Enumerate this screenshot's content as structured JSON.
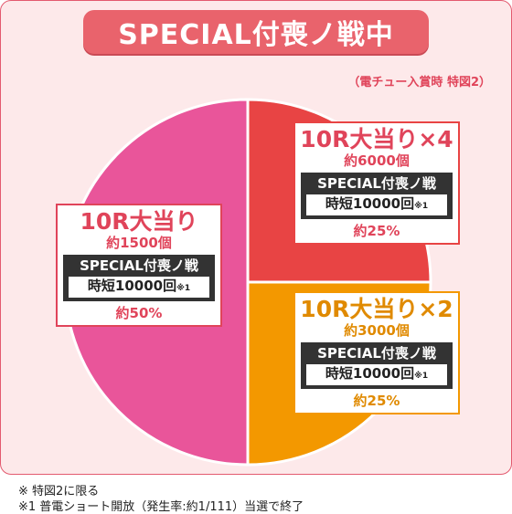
{
  "title": "SPECIAL付喪ノ戦中",
  "caption": "（電チュー入賞時 特図2）",
  "chart_data": {
    "type": "pie",
    "categories": [
      "10R大当り",
      "10R大当り×4",
      "10R大当り×2"
    ],
    "values": [
      50,
      25,
      25
    ],
    "colors": [
      "#e9559a",
      "#e84444",
      "#f39800"
    ]
  },
  "segments": [
    {
      "name": "10R大当り",
      "payout": "約1500個",
      "mode": "SPECIAL付喪ノ戦",
      "jitan": "時短10000回",
      "jitan_note": "※1",
      "pct": "約50%",
      "color": "#e9559a"
    },
    {
      "name": "10R大当り×4",
      "payout": "約6000個",
      "mode": "SPECIAL付喪ノ戦",
      "jitan": "時短10000回",
      "jitan_note": "※1",
      "pct": "約25%",
      "color": "#e84444"
    },
    {
      "name": "10R大当り×2",
      "payout": "約3000個",
      "mode": "SPECIAL付喪ノ戦",
      "jitan": "時短10000回",
      "jitan_note": "※1",
      "pct": "約25%",
      "color": "#f39800"
    }
  ],
  "notes": [
    "※ 特図2に限る",
    "※1 普電ショート開放（発生率:約1/111）当選で終了"
  ]
}
